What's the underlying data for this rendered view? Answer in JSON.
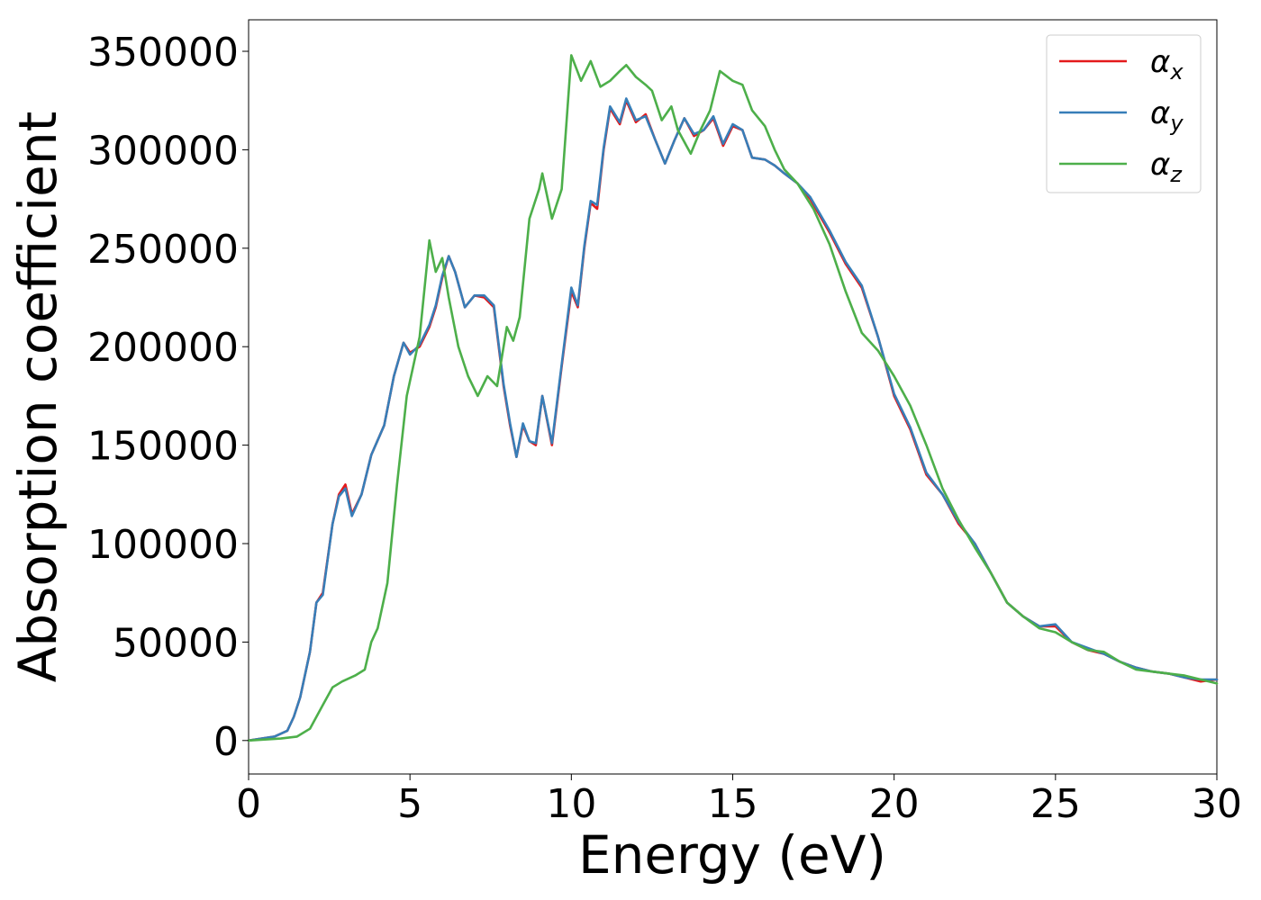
{
  "chart_data": {
    "type": "line",
    "title": "",
    "xlabel": "Energy (eV)",
    "ylabel": "Absorption coefficient",
    "xlim": [
      0,
      30
    ],
    "ylim": [
      -17000,
      366000
    ],
    "xticks": [
      0,
      5,
      10,
      15,
      20,
      25,
      30
    ],
    "yticks": [
      0,
      50000,
      100000,
      150000,
      200000,
      250000,
      300000,
      350000
    ],
    "xtick_labels": [
      "0",
      "5",
      "10",
      "15",
      "20",
      "25",
      "30"
    ],
    "ytick_labels": [
      "0",
      "50000",
      "100000",
      "150000",
      "200000",
      "250000",
      "300000",
      "350000"
    ],
    "grid": false,
    "legend_position": "top-right",
    "series": [
      {
        "name": "α_x",
        "legend_base": "α",
        "legend_sub": "x",
        "color": "#e41a1c",
        "x": [
          0,
          0.8,
          1.2,
          1.4,
          1.6,
          1.9,
          2.1,
          2.3,
          2.6,
          2.8,
          3.0,
          3.2,
          3.5,
          3.8,
          4.2,
          4.5,
          4.8,
          5.0,
          5.3,
          5.6,
          5.8,
          6.0,
          6.2,
          6.4,
          6.7,
          7.0,
          7.3,
          7.6,
          7.9,
          8.1,
          8.3,
          8.5,
          8.7,
          8.9,
          9.1,
          9.4,
          9.7,
          10.0,
          10.2,
          10.4,
          10.6,
          10.8,
          11.0,
          11.2,
          11.5,
          11.7,
          12.0,
          12.3,
          12.6,
          12.9,
          13.2,
          13.5,
          13.8,
          14.1,
          14.4,
          14.7,
          15.0,
          15.3,
          15.6,
          16.0,
          16.3,
          16.6,
          17.0,
          17.4,
          18.0,
          18.5,
          19.0,
          19.5,
          20.0,
          20.5,
          21.0,
          21.5,
          22.0,
          22.5,
          23.0,
          23.5,
          24.0,
          24.5,
          25.0,
          25.5,
          26.0,
          26.5,
          27.0,
          27.5,
          28.0,
          28.5,
          29.0,
          29.5,
          30.0
        ],
        "values": [
          0,
          2000,
          5000,
          12000,
          22000,
          45000,
          70000,
          75000,
          110000,
          125000,
          130000,
          115000,
          125000,
          145000,
          160000,
          185000,
          202000,
          197000,
          200000,
          210000,
          220000,
          235000,
          246000,
          238000,
          220000,
          226000,
          225000,
          220000,
          180000,
          160000,
          144000,
          160000,
          152000,
          150000,
          175000,
          150000,
          190000,
          228000,
          220000,
          250000,
          273000,
          270000,
          300000,
          321000,
          313000,
          325000,
          314000,
          318000,
          305000,
          293000,
          305000,
          316000,
          307000,
          310000,
          316000,
          302000,
          312000,
          310000,
          296000,
          295000,
          292000,
          288000,
          283000,
          275000,
          258000,
          242000,
          230000,
          205000,
          175000,
          158000,
          135000,
          125000,
          110000,
          100000,
          85000,
          70000,
          63000,
          58000,
          58000,
          50000,
          46000,
          44000,
          40000,
          37000,
          35000,
          34000,
          32000,
          30000,
          31000
        ]
      },
      {
        "name": "α_y",
        "legend_base": "α",
        "legend_sub": "y",
        "color": "#377eb8",
        "x": [
          0,
          0.8,
          1.2,
          1.4,
          1.6,
          1.9,
          2.1,
          2.3,
          2.6,
          2.8,
          3.0,
          3.2,
          3.5,
          3.8,
          4.2,
          4.5,
          4.8,
          5.0,
          5.3,
          5.6,
          5.8,
          6.0,
          6.2,
          6.4,
          6.7,
          7.0,
          7.3,
          7.6,
          7.9,
          8.1,
          8.3,
          8.5,
          8.7,
          8.9,
          9.1,
          9.4,
          9.7,
          10.0,
          10.2,
          10.4,
          10.6,
          10.8,
          11.0,
          11.2,
          11.5,
          11.7,
          12.0,
          12.3,
          12.6,
          12.9,
          13.2,
          13.5,
          13.8,
          14.1,
          14.4,
          14.7,
          15.0,
          15.3,
          15.6,
          16.0,
          16.3,
          16.6,
          17.0,
          17.4,
          18.0,
          18.5,
          19.0,
          19.5,
          20.0,
          20.5,
          21.0,
          21.5,
          22.0,
          22.5,
          23.0,
          23.5,
          24.0,
          24.5,
          25.0,
          25.5,
          26.0,
          26.5,
          27.0,
          27.5,
          28.0,
          28.5,
          29.0,
          29.5,
          30.0
        ],
        "values": [
          0,
          2000,
          5000,
          12000,
          22000,
          45000,
          70000,
          74000,
          110000,
          124000,
          128000,
          114000,
          125000,
          145000,
          160000,
          185000,
          202000,
          196000,
          201000,
          211000,
          221000,
          236000,
          246000,
          238000,
          220000,
          226000,
          226000,
          221000,
          181000,
          161000,
          144000,
          161000,
          152000,
          151000,
          175000,
          151000,
          191000,
          230000,
          221000,
          251000,
          274000,
          272000,
          301000,
          322000,
          314000,
          326000,
          315000,
          317000,
          305000,
          293000,
          305000,
          316000,
          308000,
          310000,
          317000,
          303000,
          313000,
          310000,
          296000,
          295000,
          292000,
          288000,
          283000,
          276000,
          259000,
          243000,
          231000,
          205000,
          176000,
          159000,
          136000,
          125000,
          111000,
          100000,
          85000,
          70000,
          63000,
          58000,
          59000,
          50000,
          47000,
          44000,
          40000,
          37000,
          35000,
          34000,
          32000,
          31000,
          31000
        ]
      },
      {
        "name": "α_z",
        "legend_base": "α",
        "legend_sub": "z",
        "color": "#4daf4a",
        "x": [
          0,
          1.0,
          1.5,
          1.9,
          2.3,
          2.6,
          2.9,
          3.3,
          3.6,
          3.8,
          4.0,
          4.3,
          4.6,
          4.9,
          5.3,
          5.6,
          5.8,
          6.0,
          6.2,
          6.5,
          6.8,
          7.1,
          7.4,
          7.7,
          8.0,
          8.2,
          8.4,
          8.7,
          9.0,
          9.1,
          9.4,
          9.7,
          10.0,
          10.3,
          10.6,
          10.9,
          11.2,
          11.5,
          11.7,
          12.0,
          12.3,
          12.5,
          12.8,
          13.1,
          13.3,
          13.7,
          14.0,
          14.3,
          14.6,
          15.0,
          15.3,
          15.6,
          16.0,
          16.3,
          16.6,
          17.0,
          17.5,
          18.0,
          18.5,
          19.0,
          19.5,
          20.0,
          20.5,
          21.0,
          21.5,
          22.0,
          22.5,
          23.0,
          23.5,
          24.0,
          24.5,
          25.0,
          25.5,
          26.0,
          26.5,
          27.0,
          27.5,
          28.0,
          28.5,
          29.0,
          29.5,
          30.0
        ],
        "values": [
          0,
          1000,
          2000,
          6000,
          18000,
          27000,
          30000,
          33000,
          36000,
          50000,
          57000,
          80000,
          130000,
          175000,
          205000,
          254000,
          238000,
          245000,
          225000,
          200000,
          185000,
          175000,
          185000,
          180000,
          210000,
          203000,
          215000,
          265000,
          280000,
          288000,
          265000,
          280000,
          348000,
          335000,
          345000,
          332000,
          335000,
          340000,
          343000,
          337000,
          333000,
          330000,
          315000,
          322000,
          310000,
          298000,
          310000,
          320000,
          340000,
          335000,
          333000,
          320000,
          312000,
          300000,
          290000,
          283000,
          270000,
          252000,
          228000,
          207000,
          198000,
          185000,
          170000,
          150000,
          128000,
          112000,
          98000,
          85000,
          70000,
          63000,
          57000,
          55000,
          50000,
          46000,
          45000,
          40000,
          36000,
          35000,
          34000,
          33000,
          31000,
          29000
        ]
      }
    ]
  }
}
